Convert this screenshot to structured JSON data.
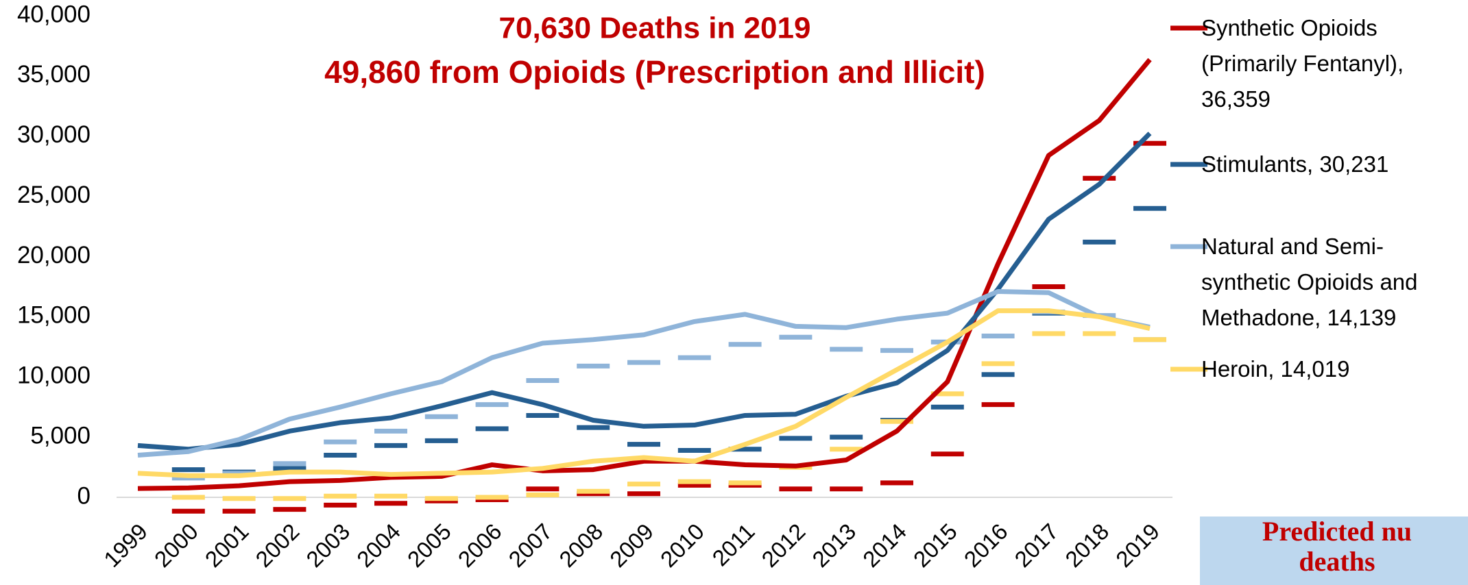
{
  "chart_data": {
    "type": "line",
    "title_lines": [
      "70,630 Deaths in 2019",
      "49,860 from Opioids (Prescription and Illicit)"
    ],
    "categories": [
      "1999",
      "2000",
      "2001",
      "2002",
      "2003",
      "2004",
      "2005",
      "2006",
      "2007",
      "2008",
      "2009",
      "2010",
      "2011",
      "2012",
      "2013",
      "2014",
      "2015",
      "2016",
      "2017",
      "2018",
      "2019"
    ],
    "ylim": [
      0,
      40000
    ],
    "yticks": [
      {
        "value": 0,
        "label": "0"
      },
      {
        "value": 5000,
        "label": "5,000"
      },
      {
        "value": 10000,
        "label": "10,000"
      },
      {
        "value": 15000,
        "label": "15,000"
      },
      {
        "value": 20000,
        "label": "20,000"
      },
      {
        "value": 25000,
        "label": "25,000"
      },
      {
        "value": 30000,
        "label": "30,000"
      },
      {
        "value": 35000,
        "label": "35,000"
      },
      {
        "value": 40000,
        "label": "40,000"
      }
    ],
    "series": [
      {
        "name": "Synthetic Opioids (Primarily Fentanyl), 36,359",
        "color": "#c00000",
        "values": [
          730,
          780,
          960,
          1300,
          1400,
          1660,
          1740,
          2700,
          2200,
          2300,
          3000,
          3000,
          2700,
          2600,
          3100,
          5500,
          9600,
          19400,
          28400,
          31300,
          36359
        ]
      },
      {
        "name": "Stimulants, 30,231",
        "color": "#255e91",
        "values": [
          4300,
          4000,
          4400,
          5500,
          6200,
          6600,
          7600,
          8700,
          7700,
          6400,
          5900,
          6000,
          6800,
          6900,
          8400,
          9500,
          12200,
          17300,
          23100,
          26000,
          30231
        ]
      },
      {
        "name": "Natural and Semi-synthetic Opioids and Methadone, 14,139",
        "color": "#8fb4d9",
        "values": [
          3500,
          3800,
          4800,
          6500,
          7500,
          8600,
          9600,
          11600,
          12800,
          13100,
          13500,
          14600,
          15200,
          14200,
          14100,
          14800,
          15300,
          17100,
          17000,
          15000,
          14139
        ]
      },
      {
        "name": "Heroin, 14,019",
        "color": "#ffd966",
        "values": [
          2000,
          1800,
          1800,
          2100,
          2100,
          1900,
          2000,
          2100,
          2400,
          3000,
          3300,
          3000,
          4400,
          5900,
          8300,
          10600,
          12900,
          15500,
          15500,
          15000,
          14019
        ]
      }
    ],
    "predicted_series": [
      {
        "color": "#c00000",
        "values": [
          null,
          -1150,
          -1150,
          -1000,
          -650,
          -500,
          -300,
          -200,
          700,
          300,
          300,
          1000,
          1000,
          700,
          700,
          1200,
          3600,
          7700,
          17500,
          26500,
          29400
        ]
      },
      {
        "color": "#255e91",
        "values": [
          null,
          2300,
          2100,
          2400,
          3500,
          4300,
          4700,
          5700,
          6800,
          5800,
          4400,
          3900,
          4000,
          4900,
          5000,
          6400,
          7500,
          10200,
          15300,
          21200,
          24000
        ]
      },
      {
        "color": "#8fb4d9",
        "values": [
          null,
          1600,
          2000,
          2800,
          4600,
          5500,
          6700,
          7700,
          9700,
          10900,
          11200,
          11600,
          12700,
          13300,
          12300,
          12200,
          12900,
          13400,
          15400,
          15100,
          13100
        ]
      },
      {
        "color": "#ffd966",
        "values": [
          null,
          0,
          -100,
          -100,
          100,
          100,
          -100,
          0,
          200,
          500,
          1100,
          1300,
          1200,
          2500,
          4000,
          6300,
          8600,
          11100,
          13600,
          13600,
          13100
        ]
      }
    ],
    "annotation_lines": [
      "Predicted nu",
      "deaths"
    ]
  }
}
